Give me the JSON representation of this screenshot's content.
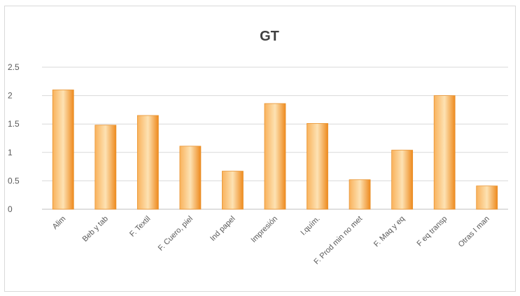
{
  "chart_data": {
    "type": "bar",
    "title": "GT",
    "xlabel": "",
    "ylabel": "",
    "categories": [
      "Alim",
      "Beb y tab",
      "F. Textil",
      "F. Cuero, piel",
      "Ind papel",
      "Impresión",
      "I.quím.",
      "F. Prod min no met",
      "F. Maq y eq",
      "F eq  transp",
      "Otras I man"
    ],
    "values": [
      2.1,
      1.48,
      1.65,
      1.11,
      0.67,
      1.86,
      1.51,
      0.52,
      1.04,
      2.0,
      0.41
    ],
    "yticks": [
      "0",
      "0.5",
      "1",
      "1.5",
      "2",
      "2.5"
    ],
    "ylim": [
      0,
      2.5
    ],
    "grid": true,
    "legend": "none",
    "colors": {
      "bar_light": "#fde2b3",
      "bar_mid": "#f9b25c",
      "bar_dark": "#ee8a1e",
      "bar_edge": "#e8922e",
      "grid": "#d9d9d9",
      "axis": "#bfbfbf",
      "text": "#595959",
      "title": "#404040"
    }
  }
}
